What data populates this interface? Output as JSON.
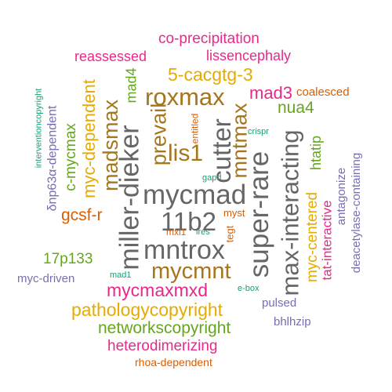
{
  "palette": {
    "pink": "#e7298a",
    "orange": "#d95f02",
    "gold": "#e6ab02",
    "green": "#66a61e",
    "teal": "#1b9e77",
    "purple": "#7570b3",
    "brown": "#a6761d",
    "gray": "#666666"
  },
  "words": [
    {
      "text": "co-precipitation",
      "color": "pink"
    },
    {
      "text": "reassessed",
      "color": "pink"
    },
    {
      "text": "lissencephaly",
      "color": "pink"
    },
    {
      "text": "5-cacgtg-3",
      "color": "gold"
    },
    {
      "text": "mad4",
      "color": "green"
    },
    {
      "text": "roxmax",
      "color": "brown"
    },
    {
      "text": "mad3",
      "color": "pink"
    },
    {
      "text": "coalesced",
      "color": "orange"
    },
    {
      "text": "nua4",
      "color": "green"
    },
    {
      "text": "interventioncopyright",
      "color": "teal"
    },
    {
      "text": "δnp63α-dependent",
      "color": "purple"
    },
    {
      "text": "c-mycmax",
      "color": "green"
    },
    {
      "text": "myc-dependent",
      "color": "gold"
    },
    {
      "text": "madsmax",
      "color": "brown"
    },
    {
      "text": "prevail",
      "color": "brown"
    },
    {
      "text": "lis1",
      "color": "brown"
    },
    {
      "text": "entitled",
      "color": "orange"
    },
    {
      "text": "miller-dieker",
      "color": "gray"
    },
    {
      "text": "cutter",
      "color": "gray"
    },
    {
      "text": "mntmax",
      "color": "brown"
    },
    {
      "text": "crispr",
      "color": "teal"
    },
    {
      "text": "htatip",
      "color": "green"
    },
    {
      "text": "deacetylase-containing",
      "color": "purple"
    },
    {
      "text": "antagonize",
      "color": "purple"
    },
    {
      "text": "super-rare",
      "color": "gray"
    },
    {
      "text": "max-interacting",
      "color": "gray"
    },
    {
      "text": "gapd",
      "color": "teal"
    },
    {
      "text": "mycmad",
      "color": "gray"
    },
    {
      "text": "myc-centered",
      "color": "gold"
    },
    {
      "text": "tat-interactive",
      "color": "pink"
    },
    {
      "text": "gcsf-r",
      "color": "orange"
    },
    {
      "text": "11b2",
      "color": "gray"
    },
    {
      "text": "myst",
      "color": "orange"
    },
    {
      "text": "mxi1",
      "color": "orange"
    },
    {
      "text": "ires",
      "color": "teal"
    },
    {
      "text": "tegt",
      "color": "orange"
    },
    {
      "text": "17p133",
      "color": "green"
    },
    {
      "text": "mntrox",
      "color": "gray"
    },
    {
      "text": "mycmnt",
      "color": "brown"
    },
    {
      "text": "myc-driven",
      "color": "purple"
    },
    {
      "text": "mad1",
      "color": "teal"
    },
    {
      "text": "e-box",
      "color": "teal"
    },
    {
      "text": "mycmaxmxd",
      "color": "pink"
    },
    {
      "text": "pulsed",
      "color": "purple"
    },
    {
      "text": "pathologycopyright",
      "color": "gold"
    },
    {
      "text": "bhlhzip",
      "color": "purple"
    },
    {
      "text": "networkscopyright",
      "color": "green"
    },
    {
      "text": "heterodimerizing",
      "color": "pink"
    },
    {
      "text": "rhoa-dependent",
      "color": "orange"
    }
  ]
}
